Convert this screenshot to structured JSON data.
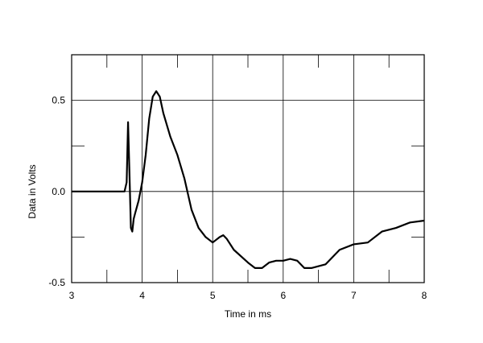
{
  "chart_data": {
    "type": "line",
    "x_label": "Time in ms",
    "y_label": "Data in Volts",
    "series": [
      {
        "color": "#000000",
        "x": [
          3.0,
          3.75,
          3.78,
          3.8,
          3.82,
          3.84,
          3.86,
          3.88,
          3.9,
          3.95,
          4.0,
          4.05,
          4.1,
          4.15,
          4.2,
          4.25,
          4.3,
          4.4,
          4.5,
          4.6,
          4.7,
          4.8,
          4.9,
          5.0,
          5.1,
          5.15,
          5.2,
          5.3,
          5.5,
          5.6,
          5.7,
          5.8,
          5.9,
          6.0,
          6.1,
          6.2,
          6.3,
          6.4,
          6.6,
          6.8,
          7.0,
          7.2,
          7.4,
          7.6,
          7.8,
          8.0
        ],
        "values": [
          0,
          0,
          0.05,
          0.38,
          0.1,
          -0.2,
          -0.22,
          -0.15,
          -0.12,
          -0.05,
          0.05,
          0.2,
          0.4,
          0.52,
          0.55,
          0.52,
          0.43,
          0.3,
          0.2,
          0.07,
          -0.1,
          -0.2,
          -0.25,
          -0.28,
          -0.25,
          -0.24,
          -0.26,
          -0.32,
          -0.39,
          -0.42,
          -0.42,
          -0.39,
          -0.38,
          -0.38,
          -0.37,
          -0.38,
          -0.42,
          -0.42,
          -0.4,
          -0.32,
          -0.29,
          -0.28,
          -0.22,
          -0.2,
          -0.17,
          -0.16
        ]
      }
    ],
    "xlim": [
      3,
      8
    ],
    "xticks": [
      3,
      4,
      5,
      6,
      7,
      8
    ],
    "ylim": [
      -0.5,
      0.75
    ],
    "yticks": [
      -0.5,
      {
        "value": 0,
        "label": "0.0"
      },
      0.5
    ],
    "minor_xticks": [
      3.5,
      4.5,
      5.5,
      6.5,
      7.5
    ],
    "minor_yticks": [
      -0.25,
      0.25
    ],
    "grid": true
  }
}
